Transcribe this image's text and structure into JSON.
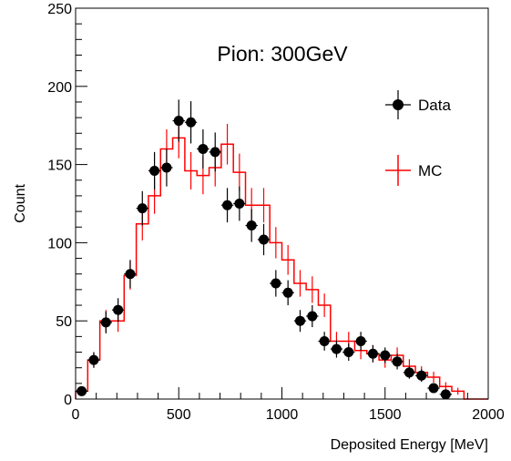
{
  "chart_data": {
    "type": "histogram",
    "title": "Pion: 300GeV",
    "xlabel": "Deposited Energy [MeV]",
    "ylabel": "Count",
    "xlim": [
      0,
      2000
    ],
    "ylim": [
      0,
      250
    ],
    "x_ticks": [
      0,
      500,
      1000,
      1500,
      2000
    ],
    "y_ticks": [
      0,
      50,
      100,
      150,
      200,
      250
    ],
    "x_tick_labels": [
      "0",
      "500",
      "1000",
      "1500",
      "2000"
    ],
    "y_tick_labels": [
      "0",
      "50",
      "100",
      "150",
      "200",
      "250"
    ],
    "grid": false,
    "legend_placement": "top-right",
    "bin_edges": [
      0,
      58.8,
      117.6,
      176.5,
      235.3,
      294.1,
      352.9,
      411.8,
      470.6,
      529.4,
      588.2,
      647.1,
      705.9,
      764.7,
      823.5,
      882.4,
      941.2,
      1000,
      1058.8,
      1117.6,
      1176.5,
      1235.3,
      1294.1,
      1352.9,
      1411.8,
      1470.6,
      1529.4,
      1588.2,
      1647.1,
      1705.9,
      1764.7,
      1823.5,
      1882.4,
      1941.2,
      2000
    ],
    "series": [
      {
        "name": "Data",
        "style": "markers",
        "color": "#000000",
        "x": [
          29.4,
          88.2,
          147.1,
          205.9,
          264.7,
          323.5,
          382.4,
          441.2,
          500,
          558.8,
          617.6,
          676.5,
          735.3,
          794.1,
          852.9,
          911.8,
          970.6,
          1029.4,
          1088.2,
          1147.1,
          1205.9,
          1264.7,
          1323.5,
          1382.4,
          1441.2,
          1500,
          1558.8,
          1617.6,
          1676.5,
          1735.3,
          1794.1,
          1852.9,
          1911.8
        ],
        "values": [
          5,
          25,
          49,
          57,
          80,
          122,
          146,
          148,
          178,
          177,
          160,
          158,
          124,
          125,
          111,
          102,
          74,
          68,
          50,
          53,
          37,
          32,
          30,
          37,
          29,
          28,
          24,
          17,
          15,
          7,
          3,
          0,
          0
        ],
        "errors": [
          2,
          5,
          7,
          7.5,
          9,
          11,
          12,
          12,
          13.5,
          13.5,
          12.5,
          12.5,
          11,
          11,
          10.5,
          10,
          8.5,
          8,
          7,
          7,
          6,
          5.5,
          5.5,
          6,
          5.5,
          5,
          5,
          4,
          4,
          2.5,
          1.7,
          0,
          0
        ]
      },
      {
        "name": "MC",
        "style": "histogram",
        "color": "#ff0000",
        "x": [
          29.4,
          88.2,
          147.1,
          205.9,
          264.7,
          323.5,
          382.4,
          441.2,
          500,
          558.8,
          617.6,
          676.5,
          735.3,
          794.1,
          852.9,
          911.8,
          970.6,
          1029.4,
          1088.2,
          1147.1,
          1205.9,
          1264.7,
          1323.5,
          1382.4,
          1441.2,
          1500,
          1558.8,
          1617.6,
          1676.5,
          1735.3,
          1794.1,
          1852.9,
          1911.8
        ],
        "values": [
          5,
          25,
          50,
          50,
          79,
          112,
          130,
          160,
          167,
          146,
          143,
          148,
          163,
          145,
          124,
          124,
          100,
          89,
          74,
          70,
          60,
          37,
          37,
          31,
          29,
          25,
          28,
          21,
          17,
          14,
          8,
          5,
          0
        ],
        "errors": [
          2,
          5,
          7,
          7,
          9,
          10.5,
          11.5,
          12.5,
          13,
          12,
          12,
          12,
          13,
          12,
          11,
          11,
          10,
          9.5,
          8.5,
          8.5,
          7.5,
          6,
          6,
          5.5,
          5.5,
          5,
          5,
          4.5,
          4,
          3.5,
          2.8,
          2.2,
          0
        ]
      }
    ]
  }
}
